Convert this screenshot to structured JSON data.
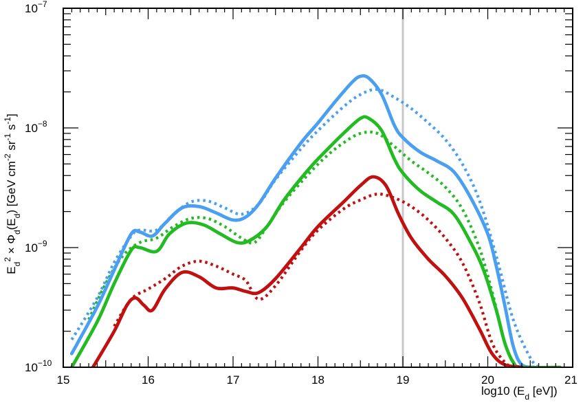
{
  "chart_data": {
    "type": "line",
    "xlabel": "log10 (E_d [eV])",
    "ylabel": "E_d^2 × Φ_d(E_d) [GeV cm^-2 sr^-1 s^-1]",
    "xlim": [
      15,
      21
    ],
    "ylim": [
      1e-10,
      1e-07
    ],
    "yscale": "log",
    "x_ticks": [
      "15",
      "16",
      "17",
      "18",
      "19",
      "20",
      "21"
    ],
    "y_ticks": [
      {
        "base": "10",
        "exp": "−10",
        "value": 1e-10
      },
      {
        "base": "10",
        "exp": "−9",
        "value": 1e-09
      },
      {
        "base": "10",
        "exp": "−8",
        "value": 1e-08
      },
      {
        "base": "10",
        "exp": "−7",
        "value": 1e-07
      }
    ],
    "grid": false,
    "vertical_line": {
      "x": 19.0,
      "color": "#c8c8c8"
    },
    "series": [
      {
        "color": "#4a9ff0",
        "style": "solid",
        "points": [
          [
            15.1,
            1.3e-10
          ],
          [
            15.4,
            3.2e-10
          ],
          [
            15.6,
            6.5e-10
          ],
          [
            15.8,
            1.3e-09
          ],
          [
            15.9,
            1.35e-09
          ],
          [
            16.05,
            1.25e-09
          ],
          [
            16.2,
            1.6e-09
          ],
          [
            16.4,
            2.15e-09
          ],
          [
            16.6,
            2.2e-09
          ],
          [
            16.8,
            1.95e-09
          ],
          [
            17.0,
            1.7e-09
          ],
          [
            17.15,
            1.8e-09
          ],
          [
            17.3,
            2.3e-09
          ],
          [
            17.5,
            3.8e-09
          ],
          [
            17.8,
            7.5e-09
          ],
          [
            18.0,
            1.1e-08
          ],
          [
            18.2,
            1.65e-08
          ],
          [
            18.4,
            2.4e-08
          ],
          [
            18.5,
            2.7e-08
          ],
          [
            18.6,
            2.6e-08
          ],
          [
            18.75,
            1.9e-08
          ],
          [
            18.9,
            1.05e-08
          ],
          [
            19.0,
            8.3e-09
          ],
          [
            19.2,
            6.3e-09
          ],
          [
            19.4,
            5.3e-09
          ],
          [
            19.6,
            4.3e-09
          ],
          [
            19.8,
            2.6e-09
          ],
          [
            20.0,
            1.3e-09
          ],
          [
            20.1,
            7e-10
          ],
          [
            20.2,
            3.3e-10
          ],
          [
            20.3,
            1.5e-10
          ],
          [
            20.4,
            1.05e-10
          ],
          [
            20.55,
            1e-10
          ]
        ]
      },
      {
        "color": "#4a9ff0",
        "style": "dotted",
        "points": [
          [
            15.1,
            1.7e-10
          ],
          [
            15.4,
            3.8e-10
          ],
          [
            15.6,
            7.5e-10
          ],
          [
            15.8,
            1.25e-09
          ],
          [
            15.9,
            1.4e-09
          ],
          [
            16.1,
            1.4e-09
          ],
          [
            16.3,
            1.9e-09
          ],
          [
            16.5,
            2.4e-09
          ],
          [
            16.7,
            2.45e-09
          ],
          [
            16.9,
            2.15e-09
          ],
          [
            17.1,
            1.9e-09
          ],
          [
            17.3,
            2.3e-09
          ],
          [
            17.5,
            3.7e-09
          ],
          [
            17.8,
            6.7e-09
          ],
          [
            18.0,
            9.5e-09
          ],
          [
            18.3,
            1.5e-08
          ],
          [
            18.5,
            1.9e-08
          ],
          [
            18.7,
            2.1e-08
          ],
          [
            18.9,
            1.8e-08
          ],
          [
            19.1,
            1.45e-08
          ],
          [
            19.3,
            1.1e-08
          ],
          [
            19.5,
            8e-09
          ],
          [
            19.7,
            5e-09
          ],
          [
            19.9,
            2.5e-09
          ],
          [
            20.1,
            8.5e-10
          ],
          [
            20.3,
            2.5e-10
          ],
          [
            20.5,
            1.2e-10
          ],
          [
            20.6,
            1e-10
          ]
        ]
      },
      {
        "color": "#22bb22",
        "style": "solid",
        "points": [
          [
            15.1,
            1e-10
          ],
          [
            15.4,
            2.4e-10
          ],
          [
            15.6,
            5e-10
          ],
          [
            15.8,
            9.5e-10
          ],
          [
            15.9,
            1e-09
          ],
          [
            16.1,
            9.3e-10
          ],
          [
            16.25,
            1.3e-09
          ],
          [
            16.45,
            1.6e-09
          ],
          [
            16.65,
            1.55e-09
          ],
          [
            16.85,
            1.3e-09
          ],
          [
            17.05,
            1.1e-09
          ],
          [
            17.2,
            1.15e-09
          ],
          [
            17.4,
            1.5e-09
          ],
          [
            17.6,
            2.5e-09
          ],
          [
            17.9,
            4.6e-09
          ],
          [
            18.1,
            6.5e-09
          ],
          [
            18.3,
            9e-09
          ],
          [
            18.5,
            1.2e-08
          ],
          [
            18.6,
            1.2e-08
          ],
          [
            18.75,
            9.5e-09
          ],
          [
            18.9,
            5.5e-09
          ],
          [
            19.0,
            4.2e-09
          ],
          [
            19.2,
            3e-09
          ],
          [
            19.4,
            2.4e-09
          ],
          [
            19.6,
            1.9e-09
          ],
          [
            19.8,
            1.1e-09
          ],
          [
            19.95,
            6.5e-10
          ],
          [
            20.1,
            3e-10
          ],
          [
            20.2,
            1.6e-10
          ],
          [
            20.3,
            1.1e-10
          ],
          [
            20.4,
            1e-10
          ],
          [
            20.85,
            1e-10
          ]
        ]
      },
      {
        "color": "#22bb22",
        "style": "dotted",
        "points": [
          [
            15.3,
            2.5e-10
          ],
          [
            15.5,
            5e-10
          ],
          [
            15.7,
            8.5e-10
          ],
          [
            15.9,
            1.1e-09
          ],
          [
            16.1,
            1.2e-09
          ],
          [
            16.3,
            1.5e-09
          ],
          [
            16.5,
            1.75e-09
          ],
          [
            16.7,
            1.75e-09
          ],
          [
            16.9,
            1.5e-09
          ],
          [
            17.1,
            1.2e-09
          ],
          [
            17.25,
            1.1e-09
          ],
          [
            17.4,
            1.5e-09
          ],
          [
            17.6,
            2.4e-09
          ],
          [
            17.9,
            4.2e-09
          ],
          [
            18.1,
            5.8e-09
          ],
          [
            18.3,
            7.5e-09
          ],
          [
            18.5,
            9e-09
          ],
          [
            18.7,
            9e-09
          ],
          [
            18.9,
            7e-09
          ],
          [
            19.1,
            5.3e-09
          ],
          [
            19.3,
            4.2e-09
          ],
          [
            19.5,
            3.2e-09
          ],
          [
            19.7,
            2.1e-09
          ],
          [
            19.9,
            1e-09
          ],
          [
            20.05,
            4.3e-10
          ],
          [
            20.2,
            1.6e-10
          ],
          [
            20.3,
            1.1e-10
          ],
          [
            20.35,
            1e-10
          ]
        ]
      },
      {
        "color": "#c01010",
        "style": "solid",
        "points": [
          [
            15.35,
            1e-10
          ],
          [
            15.6,
            2e-10
          ],
          [
            15.75,
            3.3e-10
          ],
          [
            15.85,
            3.8e-10
          ],
          [
            15.95,
            3.3e-10
          ],
          [
            16.05,
            3e-10
          ],
          [
            16.2,
            4.5e-10
          ],
          [
            16.4,
            6.2e-10
          ],
          [
            16.6,
            5.7e-10
          ],
          [
            16.8,
            4.6e-10
          ],
          [
            17.0,
            4.6e-10
          ],
          [
            17.15,
            4.3e-10
          ],
          [
            17.3,
            4.2e-10
          ],
          [
            17.5,
            5.5e-10
          ],
          [
            17.8,
            1e-09
          ],
          [
            18.0,
            1.5e-09
          ],
          [
            18.3,
            2.4e-09
          ],
          [
            18.5,
            3.3e-09
          ],
          [
            18.65,
            3.9e-09
          ],
          [
            18.8,
            3.3e-09
          ],
          [
            18.95,
            1.9e-09
          ],
          [
            19.1,
            1.2e-09
          ],
          [
            19.3,
            8e-10
          ],
          [
            19.5,
            5.8e-10
          ],
          [
            19.7,
            3.8e-10
          ],
          [
            19.9,
            2.1e-10
          ],
          [
            20.05,
            1.3e-10
          ],
          [
            20.2,
            1.05e-10
          ],
          [
            20.4,
            1e-10
          ]
        ]
      },
      {
        "color": "#c01010",
        "style": "dotted",
        "points": [
          [
            15.6,
            2.2e-10
          ],
          [
            15.8,
            3.7e-10
          ],
          [
            16.0,
            4.5e-10
          ],
          [
            16.2,
            5.5e-10
          ],
          [
            16.4,
            7e-10
          ],
          [
            16.6,
            7.7e-10
          ],
          [
            16.8,
            7e-10
          ],
          [
            17.0,
            6e-10
          ],
          [
            17.15,
            5.3e-10
          ],
          [
            17.3,
            3.7e-10
          ],
          [
            17.5,
            4.8e-10
          ],
          [
            17.8,
            9.5e-10
          ],
          [
            18.0,
            1.4e-09
          ],
          [
            18.3,
            2.1e-09
          ],
          [
            18.5,
            2.5e-09
          ],
          [
            18.7,
            2.8e-09
          ],
          [
            18.9,
            2.6e-09
          ],
          [
            19.1,
            2.2e-09
          ],
          [
            19.3,
            1.7e-09
          ],
          [
            19.5,
            1.2e-09
          ],
          [
            19.7,
            7.5e-10
          ],
          [
            19.9,
            3.5e-10
          ],
          [
            20.05,
            1.6e-10
          ],
          [
            20.2,
            1.1e-10
          ],
          [
            20.3,
            1e-10
          ]
        ]
      }
    ]
  }
}
